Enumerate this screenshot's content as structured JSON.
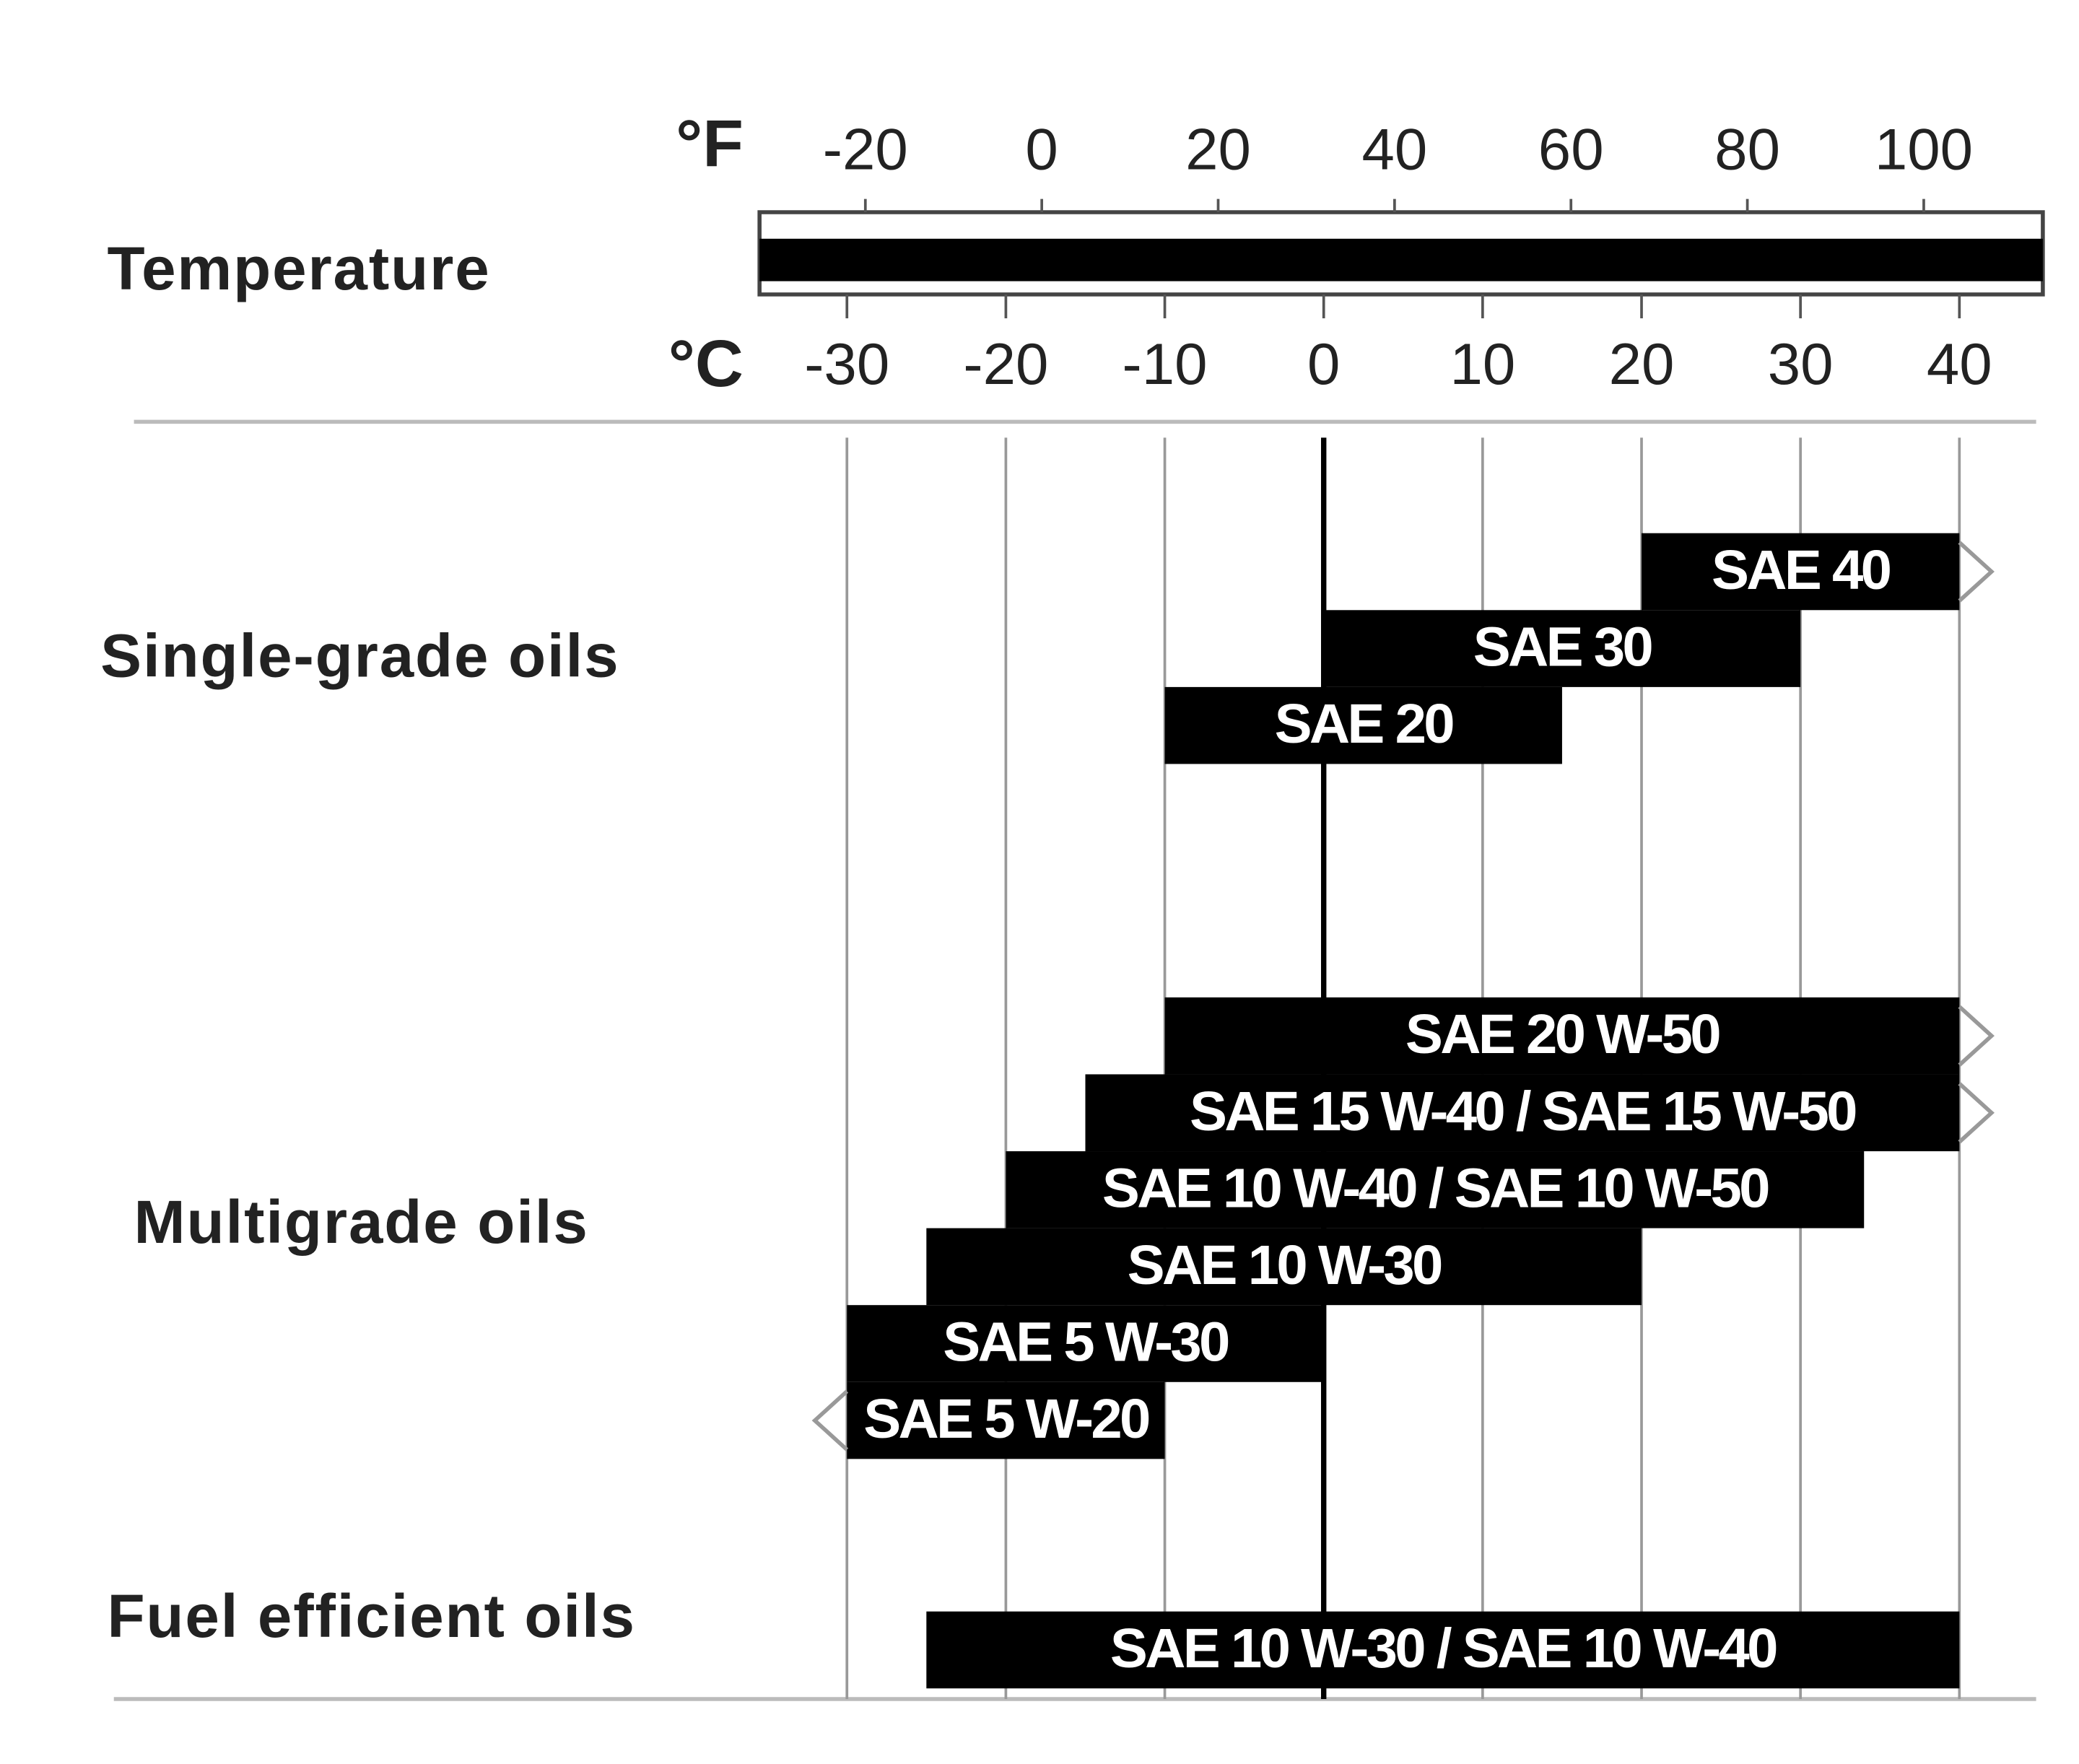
{
  "chart_data": {
    "type": "range-bar",
    "x_label": "Temperature",
    "x_unit": "°C",
    "x2_unit": "°F",
    "xlim": [
      -35.5,
      45.25
    ],
    "xticks": [
      -30,
      -20,
      -10,
      0,
      10,
      20,
      30,
      40
    ],
    "x2lim": [
      -32,
      113.5
    ],
    "x2ticks": [
      -20,
      0,
      20,
      40,
      60,
      80,
      100
    ],
    "grid": true,
    "color": "#000000",
    "groups": [
      {
        "name": "Single-grade oils",
        "bars": [
          {
            "label": "SAE 40",
            "start": 20,
            "end": 40,
            "arrow": "right"
          },
          {
            "label": "SAE 30",
            "start": 0,
            "end": 30
          },
          {
            "label": "SAE 20",
            "start": -10,
            "end": 15
          }
        ]
      },
      {
        "name": "Multigrade oils",
        "bars": [
          {
            "label": "SAE 20 W-50",
            "start": -10,
            "end": 40,
            "arrow": "right"
          },
          {
            "label": "SAE 15 W-40 / SAE 15 W-50",
            "start": -15,
            "end": 40,
            "arrow": "right"
          },
          {
            "label": "SAE 10 W-40 / SAE 10 W-50",
            "start": -20,
            "end": 34
          },
          {
            "label": "SAE 10 W-30",
            "start": -25,
            "end": 20
          },
          {
            "label": "SAE 5 W-30",
            "start": -30,
            "end": 0
          },
          {
            "label": "SAE 5 W-20",
            "start": -30,
            "end": -10,
            "arrow": "left"
          }
        ]
      },
      {
        "name": "Fuel efficient oils",
        "bars": [
          {
            "label": "SAE 10 W-30 / SAE 10 W-40",
            "start": -25,
            "end": 40
          }
        ]
      }
    ]
  }
}
